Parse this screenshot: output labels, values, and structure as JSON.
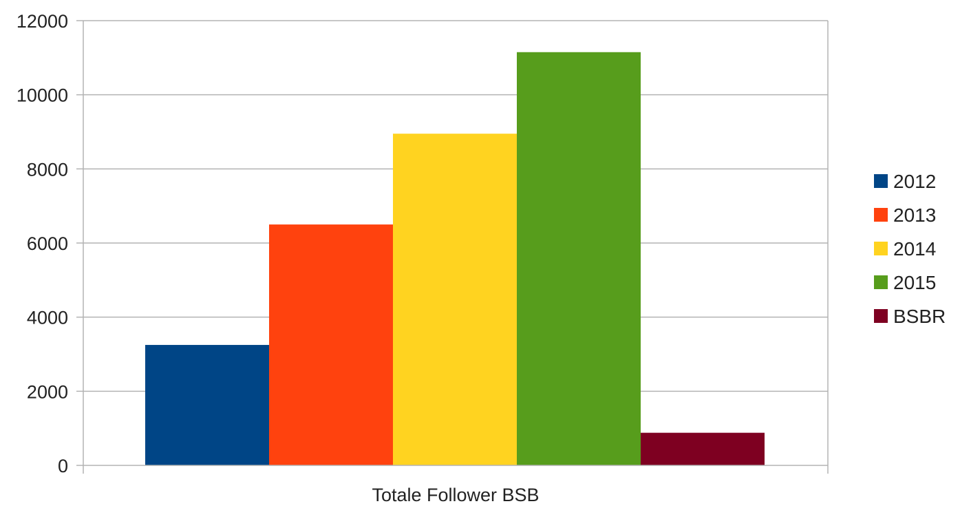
{
  "chart_data": {
    "type": "bar",
    "title": "",
    "xlabel": "",
    "ylabel": "",
    "categories": [
      "Totale Follower BSB"
    ],
    "series": [
      {
        "name": "2012",
        "values": [
          3250
        ],
        "color": "#004586"
      },
      {
        "name": "2013",
        "values": [
          6500
        ],
        "color": "#ff420e"
      },
      {
        "name": "2014",
        "values": [
          8950
        ],
        "color": "#ffd320"
      },
      {
        "name": "2015",
        "values": [
          11150
        ],
        "color": "#579d1c"
      },
      {
        "name": "BSBR",
        "values": [
          880
        ],
        "color": "#7e0021"
      }
    ],
    "ylim": [
      0,
      12000
    ],
    "yticks": [
      "0",
      "2000",
      "4000",
      "6000",
      "8000",
      "10000",
      "12000"
    ],
    "grid": true,
    "legend_position": "right"
  }
}
